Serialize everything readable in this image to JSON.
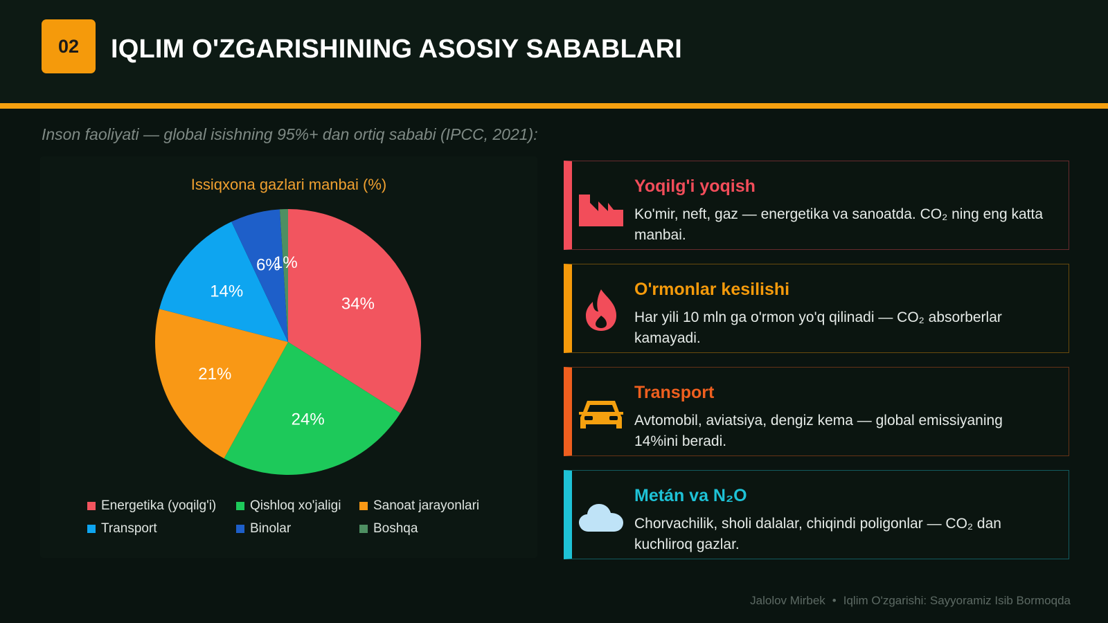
{
  "header": {
    "badge": "02",
    "title": "IQLIM O'ZGARISHINING ASOSIY SABABLARI"
  },
  "subtitle": "Inson faoliyati — global isishning 95%+ dan ortiq sababi (IPCC, 2021):",
  "chart_data": {
    "type": "pie",
    "title": "Issiqxona gazlari manbai (%)",
    "categories": [
      "Energetika (yoqilg'i)",
      "Qishloq xo'jaligi",
      "Sanoat jarayonlari",
      "Transport",
      "Binolar",
      "Boshqa"
    ],
    "values": [
      34,
      24,
      21,
      14,
      6,
      1
    ],
    "labels": [
      "34%",
      "24%",
      "21%",
      "14%",
      "6%",
      "1%"
    ],
    "colors": [
      "#f2555f",
      "#1dc95a",
      "#f99815",
      "#0ea5f0",
      "#1e5fc9",
      "#4e8f62"
    ],
    "legend_position": "bottom"
  },
  "cards": [
    {
      "title": "Yoqilg'i yoqish",
      "text": "Ko'mir, neft, gaz — energetika va sanoatda. CO₂ ning eng katta manbai.",
      "accent": "#f24d5a",
      "icon": "factory-icon"
    },
    {
      "title": "O'rmonlar kesilishi",
      "text": "Har yili 10 mln ga o'rmon yo'q qilinadi — CO₂ absorberlar kamayadi.",
      "accent": "#f59a0b",
      "icon": "fire-icon"
    },
    {
      "title": "Transport",
      "text": "Avtomobil, aviatsiya, dengiz kema — global emissiyaning 14%ini beradi.",
      "accent": "#ef5f1f",
      "icon": "car-icon"
    },
    {
      "title": "Metán va N₂O",
      "text": "Chorvachilik, sholi dalalar, chiqindi poligonlar — CO₂ dan kuchliroq gazlar.",
      "accent": "#1ec2d6",
      "icon": "cloud-icon"
    }
  ],
  "footer": {
    "author": "Jalolov Mirbek",
    "separator": "•",
    "deck_title": "Iqlim O'zgarishi: Sayyoramiz Isib Bormoqda"
  }
}
